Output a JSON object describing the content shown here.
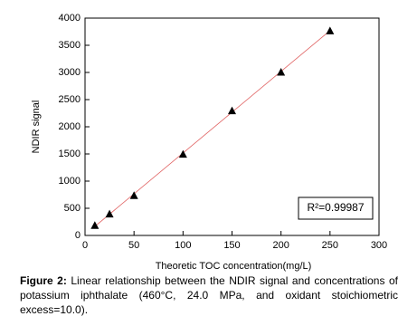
{
  "chart_data": {
    "type": "scatter",
    "xlabel": "Theoretic TOC concentration(mg/L)",
    "ylabel": "NDIR signal",
    "xlim": [
      0,
      300
    ],
    "xticks": [
      0,
      50,
      100,
      150,
      200,
      250,
      300
    ],
    "ylim": [
      0,
      4000
    ],
    "yticks": [
      0,
      500,
      1000,
      1500,
      2000,
      2500,
      3000,
      3500,
      4000
    ],
    "series": [
      {
        "color": "#000000",
        "x": [
          10,
          25,
          50,
          100,
          150,
          200,
          250
        ],
        "values": [
          180,
          390,
          730,
          1490,
          2290,
          3000,
          3760
        ]
      }
    ],
    "fit": {
      "color": "#e06060",
      "x": [
        10,
        250
      ],
      "values": [
        165,
        3770
      ]
    },
    "annotation": "R²=0.99987"
  },
  "caption": {
    "label": "Figure 2:",
    "text": "Linear relationship between the NDIR signal and concentrations of potassium iphthalate (460°C, 24.0 MPa, and oxidant stoichiometric excess=10.0)."
  }
}
